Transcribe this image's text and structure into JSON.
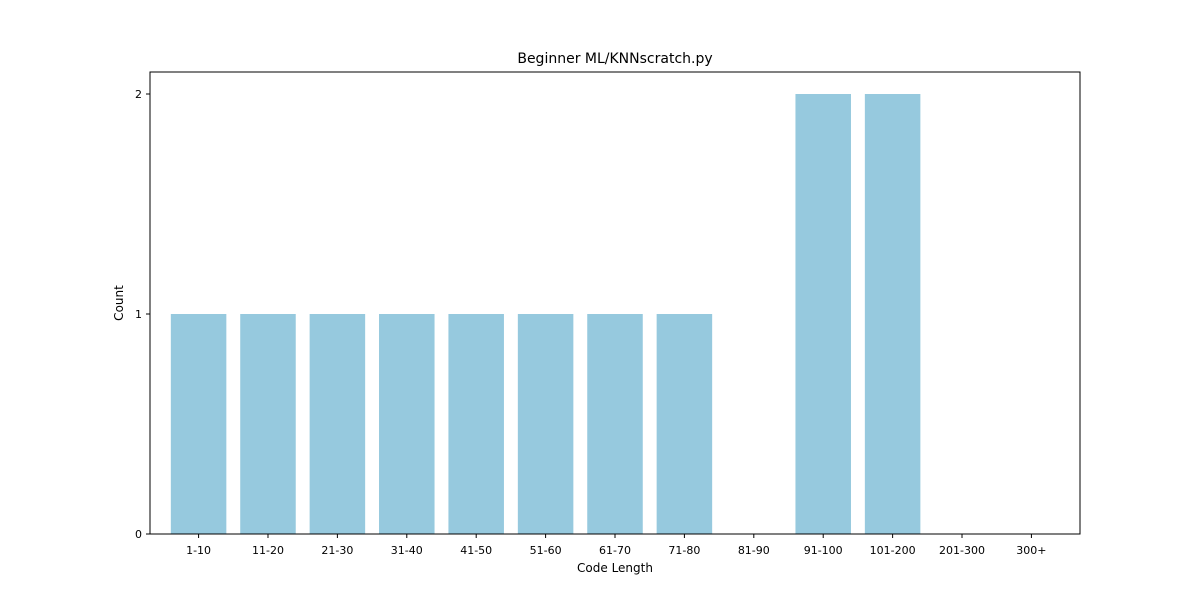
{
  "chart_data": {
    "type": "bar",
    "title": "Beginner ML/KNNscratch.py",
    "xlabel": "Code Length",
    "ylabel": "Count",
    "categories": [
      "1-10",
      "11-20",
      "21-30",
      "31-40",
      "41-50",
      "51-60",
      "61-70",
      "71-80",
      "81-90",
      "91-100",
      "101-200",
      "201-300",
      "300+"
    ],
    "values": [
      1,
      1,
      1,
      1,
      1,
      1,
      1,
      1,
      0,
      2,
      2,
      0,
      0
    ],
    "yticks": [
      0,
      1,
      2
    ],
    "ylim": [
      0,
      2.1
    ],
    "grid": false,
    "bar_color": "#96c9de"
  }
}
